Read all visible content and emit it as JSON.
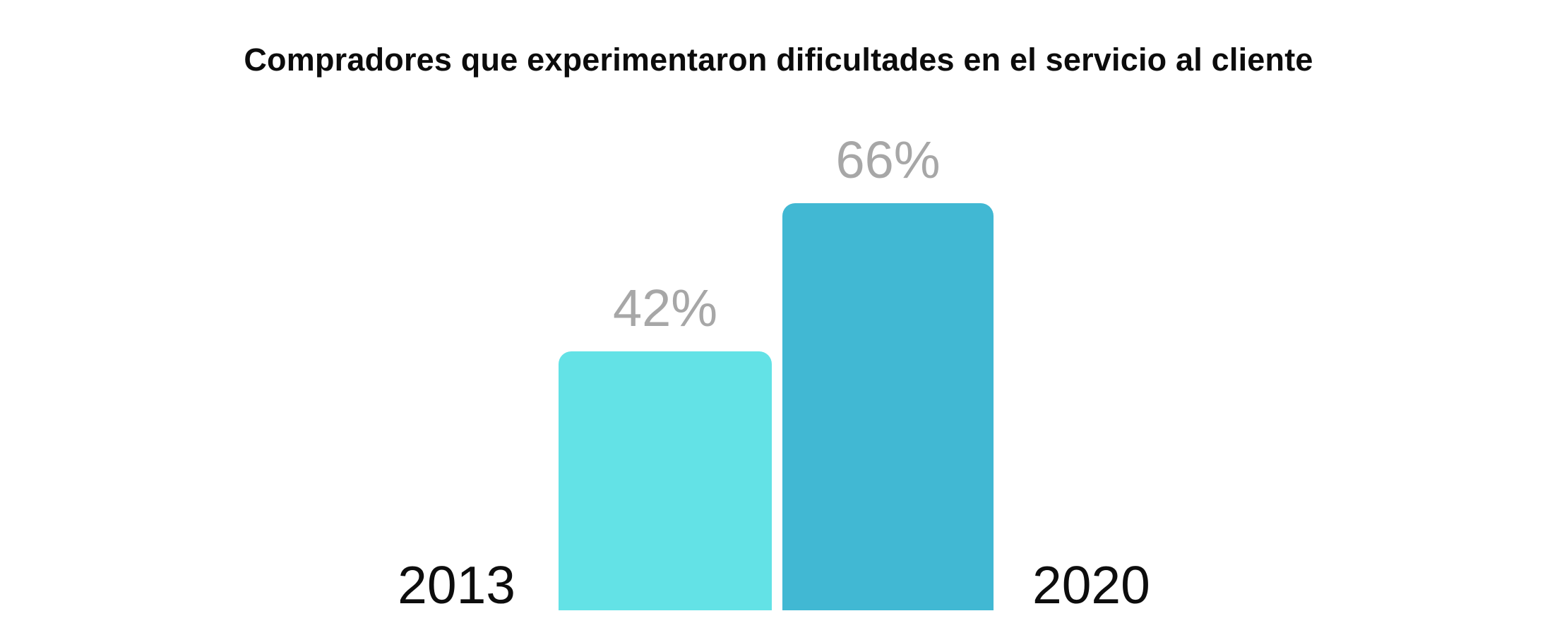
{
  "chart_data": {
    "type": "bar",
    "title": "Compradores que experimentaron dificultades en el servicio al cliente",
    "categories": [
      "2013",
      "2020"
    ],
    "values": [
      42,
      66
    ],
    "value_labels": [
      "42%",
      "66%"
    ],
    "xlabel": "",
    "ylabel": "",
    "ylim": [
      0,
      100
    ],
    "grid": false,
    "legend": false,
    "axes_visible": false,
    "bar_colors": [
      "#63E2E6",
      "#41B8D3"
    ],
    "value_label_color": "#A7A7A7",
    "category_label_color": "#0D0D0D",
    "background": "#FFFFFF"
  }
}
